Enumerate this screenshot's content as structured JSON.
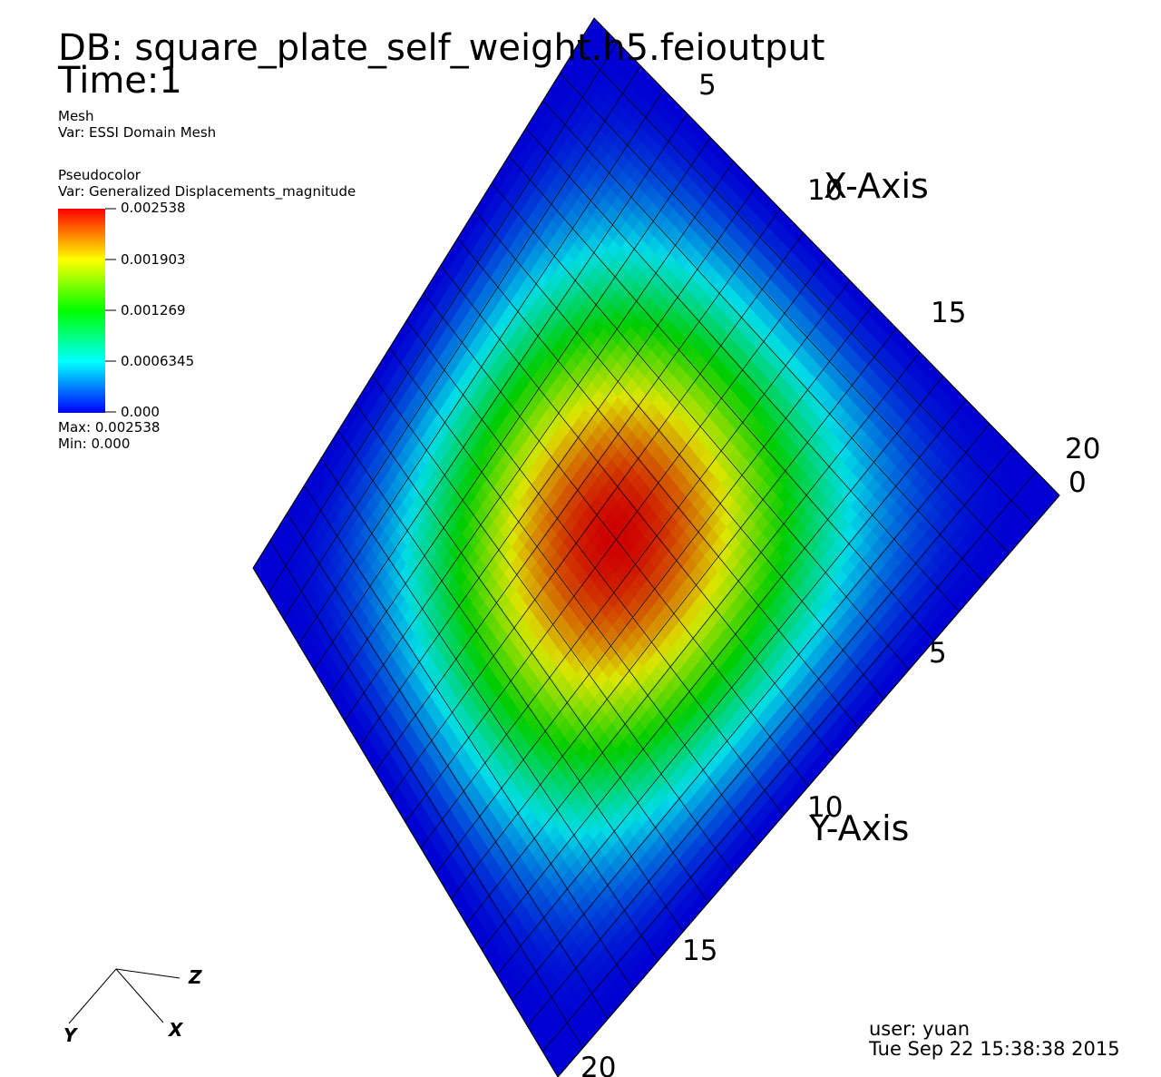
{
  "header": {
    "db_label": "DB: square_plate_self_weight.h5.feioutput",
    "time_label": "Time:1"
  },
  "mesh_legend": {
    "title": "Mesh",
    "var": "Var: ESSI Domain Mesh"
  },
  "pseudocolor_legend": {
    "title": "Pseudocolor",
    "var": "Var: Generalized Displacements_magnitude",
    "ticks": [
      "0.002538",
      "0.001903",
      "0.001269",
      "0.0006345",
      "0.000"
    ],
    "max_label": "Max:  0.002538",
    "min_label": "Min:  0.000",
    "colormap": [
      "#ff0000",
      "#ffff00",
      "#00ff00",
      "#00ffff",
      "#0000ff"
    ]
  },
  "axes": {
    "x_title": "X-Axis",
    "y_title": "Y-Axis",
    "x_ticks": [
      "5",
      "10",
      "15",
      "20"
    ],
    "y_ticks": [
      "0",
      "5",
      "10",
      "15",
      "20"
    ]
  },
  "triad": {
    "z": "Z",
    "x": "X",
    "y": "Y"
  },
  "footer": {
    "user": "user: yuan",
    "timestamp": "Tue Sep 22 15:38:38 2015"
  },
  "plot": {
    "grid_divisions": 20,
    "max_value": 0.002538,
    "min_value": 0.0
  }
}
